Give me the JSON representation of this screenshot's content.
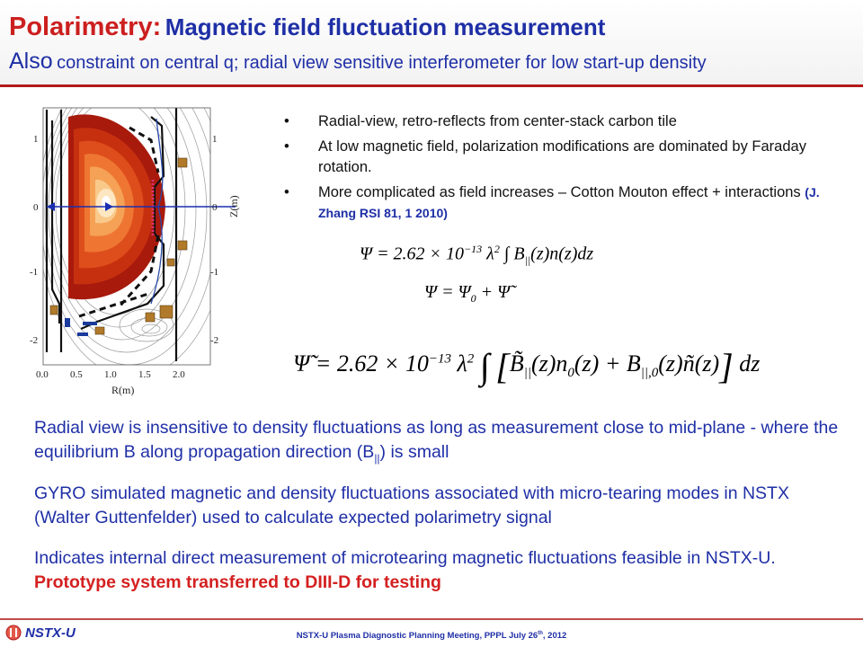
{
  "header": {
    "title_red": "Polarimetry:",
    "title_blue": "Magnetic field fluctuation measurement",
    "subtitle_big": "Also",
    "subtitle_rest": "constraint on central q; radial view sensitive interferometer for low start-up density"
  },
  "figure": {
    "xlabel": "R(m)",
    "ylabel": "Z(m)",
    "x_ticks": [
      "0.0",
      "0.5",
      "1.0",
      "1.5",
      "2.0"
    ],
    "y_ticks_left": [
      "1",
      "0",
      "-1",
      "-2"
    ],
    "y_ticks_right": [
      "1",
      "0",
      "-1",
      "-2"
    ]
  },
  "bullets": [
    {
      "text": "Radial-view, retro-reflects from center-stack carbon tile"
    },
    {
      "text": "At low magnetic field, polarization modifications are dominated by Faraday rotation."
    },
    {
      "text": "More complicated as field increases – Cotton Mouton effect + interactions",
      "ref": "(J. Zhang RSI 81, 1 2010)"
    }
  ],
  "paragraphs": {
    "p1_text": "Radial view is insensitive to density fluctuations as long as measurement close to mid-plane - where the equilibrium B along propagation direction (B",
    "p1_sub": "||",
    "p1_end": ") is small",
    "p2": "GYRO simulated magnetic and density fluctuations associated with micro-tearing modes in NSTX (Walter Guttenfelder) used to calculate expected polarimetry signal",
    "p3_text": "Indicates internal direct measurement of microtearing magnetic fluctuations feasible in NSTX-U.",
    "p3_highlight": "Prototype system transferred to DIII-D for testing"
  },
  "footer": {
    "logo_text": "NSTX-U",
    "meeting_text": "NSTX-U Plasma Diagnostic Planning Meeting, PPPL July 26",
    "meeting_sup": "th",
    "meeting_year": ", 2012"
  },
  "colors": {
    "title_red": "#cc1f1f",
    "title_blue": "#1f2fa6",
    "highlight_red": "#d42020",
    "rule_red": "#b31b1b"
  }
}
